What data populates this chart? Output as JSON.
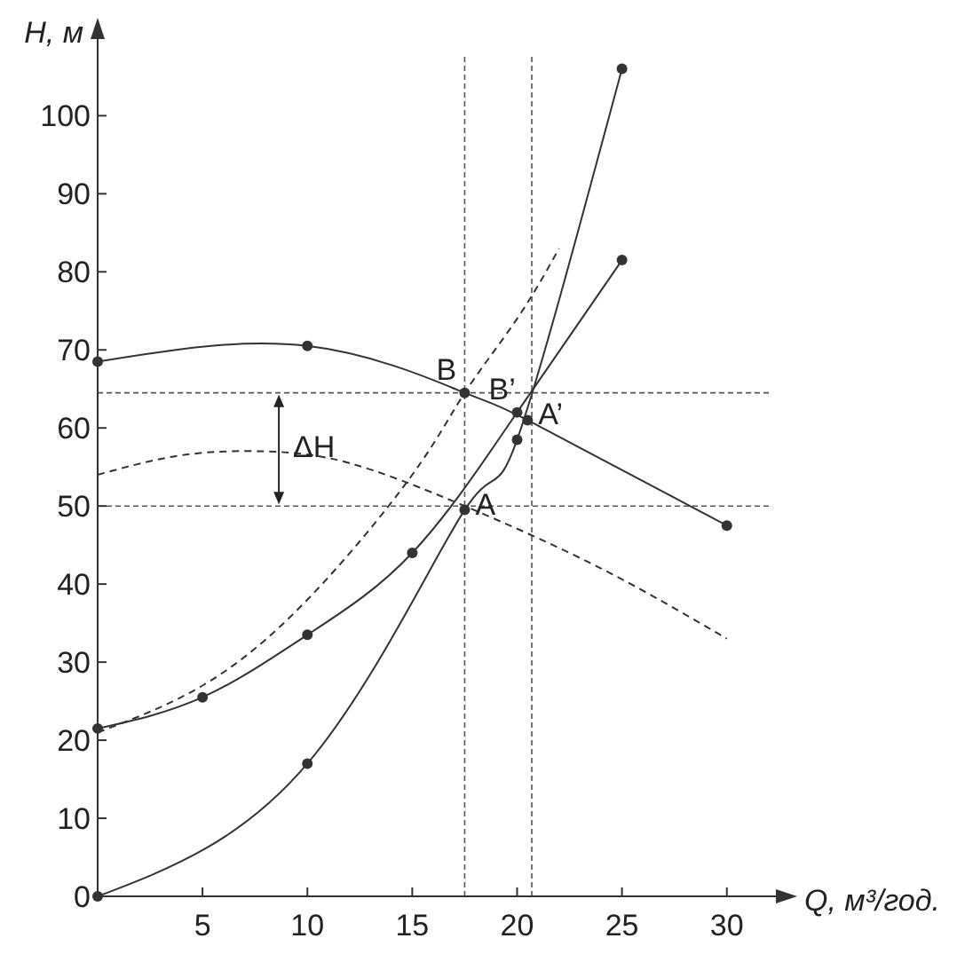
{
  "chart_data": {
    "type": "line",
    "xlabel": "Q, м³/год.",
    "ylabel": "H, м",
    "xlim": [
      0,
      32
    ],
    "ylim": [
      0,
      108
    ],
    "xticks": [
      5,
      10,
      15,
      20,
      25,
      30
    ],
    "yticks": [
      0,
      10,
      20,
      30,
      40,
      50,
      60,
      70,
      80,
      90,
      100
    ],
    "grid": false,
    "series": [
      {
        "color": "#333333",
        "x": [
          0,
          10,
          17.5,
          20.5,
          30
        ],
        "values": [
          68.5,
          70.5,
          64.5,
          61,
          47.5
        ],
        "marker": "circle",
        "line_style": "solid"
      },
      {
        "color": "#333333",
        "x": [
          0,
          10,
          17.5,
          20,
          25
        ],
        "values": [
          0,
          17,
          49.5,
          58.5,
          106
        ],
        "marker": "circle",
        "line_style": "solid"
      },
      {
        "color": "#333333",
        "x": [
          0,
          5,
          10,
          15,
          20,
          25
        ],
        "values": [
          21.5,
          25.5,
          33.5,
          44,
          62,
          81.5
        ],
        "marker": "circle",
        "line_style": "solid"
      },
      {
        "color": "#333333",
        "x": [
          0,
          4,
          8,
          12,
          17.5,
          24,
          30
        ],
        "values": [
          54,
          56.5,
          57,
          55.5,
          50,
          42,
          33
        ],
        "marker": "none",
        "line_style": "dashed"
      },
      {
        "color": "#333333",
        "x": [
          0,
          5,
          10,
          15,
          17.5,
          20,
          22
        ],
        "values": [
          21,
          27,
          38,
          54,
          64.5,
          74,
          83
        ],
        "marker": "none",
        "line_style": "dashed"
      }
    ],
    "ref_lines": [
      {
        "axis": "y",
        "value": 64.5
      },
      {
        "axis": "y",
        "value": 50
      },
      {
        "axis": "x",
        "value": 17.5
      },
      {
        "axis": "x",
        "value": 20.7
      }
    ],
    "annotations": [
      {
        "text": "B",
        "x": 17.5,
        "y": 64.5
      },
      {
        "text": "B’",
        "x": 20,
        "y": 62
      },
      {
        "text": "A’",
        "x": 20.5,
        "y": 61
      },
      {
        "text": "A",
        "x": 17.5,
        "y": 49.5
      },
      "ΔH"
    ]
  }
}
